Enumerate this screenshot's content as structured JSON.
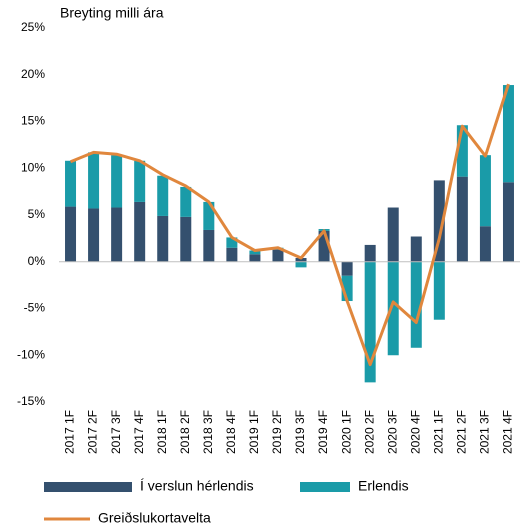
{
  "chart_data": {
    "type": "bar",
    "title": "Breyting milli ára",
    "categories": [
      "2017 1F",
      "2017 2F",
      "2017 3F",
      "2017 4F",
      "2018 1F",
      "2018 2F",
      "2018 3F",
      "2018 4F",
      "2019 1F",
      "2019 2F",
      "2019 3F",
      "2019 4F",
      "2020 1F",
      "2020 2F",
      "2020 3F",
      "2020 4F",
      "2021 1F",
      "2021 2F",
      "2021 3F",
      "2021 4F"
    ],
    "series": [
      {
        "name": "Í verslun hérlendis",
        "color": "#34506e",
        "values": [
          5.9,
          5.7,
          5.8,
          6.4,
          4.9,
          4.8,
          3.4,
          1.5,
          0.8,
          1.3,
          0.4,
          3.3,
          -1.5,
          1.8,
          5.8,
          2.7,
          8.7,
          9.1,
          3.8,
          8.5
        ]
      },
      {
        "name": "Erlendis",
        "color": "#1a9ba8",
        "values": [
          4.9,
          6.0,
          5.6,
          4.4,
          4.3,
          3.2,
          3.0,
          1.1,
          0.4,
          0.2,
          -0.6,
          0.2,
          -2.7,
          -12.9,
          -10.0,
          -9.2,
          -6.2,
          5.5,
          7.6,
          10.4
        ]
      },
      {
        "name": "Greiðslukortavelta",
        "color": "#e0873d",
        "type": "line",
        "values": [
          10.7,
          11.7,
          11.5,
          10.8,
          9.3,
          8.1,
          6.4,
          2.6,
          1.2,
          1.5,
          0.4,
          3.3,
          -4.2,
          -11.0,
          -4.3,
          -6.5,
          2.5,
          14.5,
          11.3,
          19.0
        ]
      }
    ],
    "ylim": [
      -15,
      25
    ],
    "yticks": [
      {
        "value": -15,
        "label": "-15%"
      },
      {
        "value": -10,
        "label": "-10%"
      },
      {
        "value": -5,
        "label": "-5%"
      },
      {
        "value": 0,
        "label": "0%"
      },
      {
        "value": 5,
        "label": "5%"
      },
      {
        "value": 10,
        "label": "10%"
      },
      {
        "value": 15,
        "label": "15%"
      },
      {
        "value": 20,
        "label": "20%"
      },
      {
        "value": 25,
        "label": "25%"
      }
    ]
  }
}
